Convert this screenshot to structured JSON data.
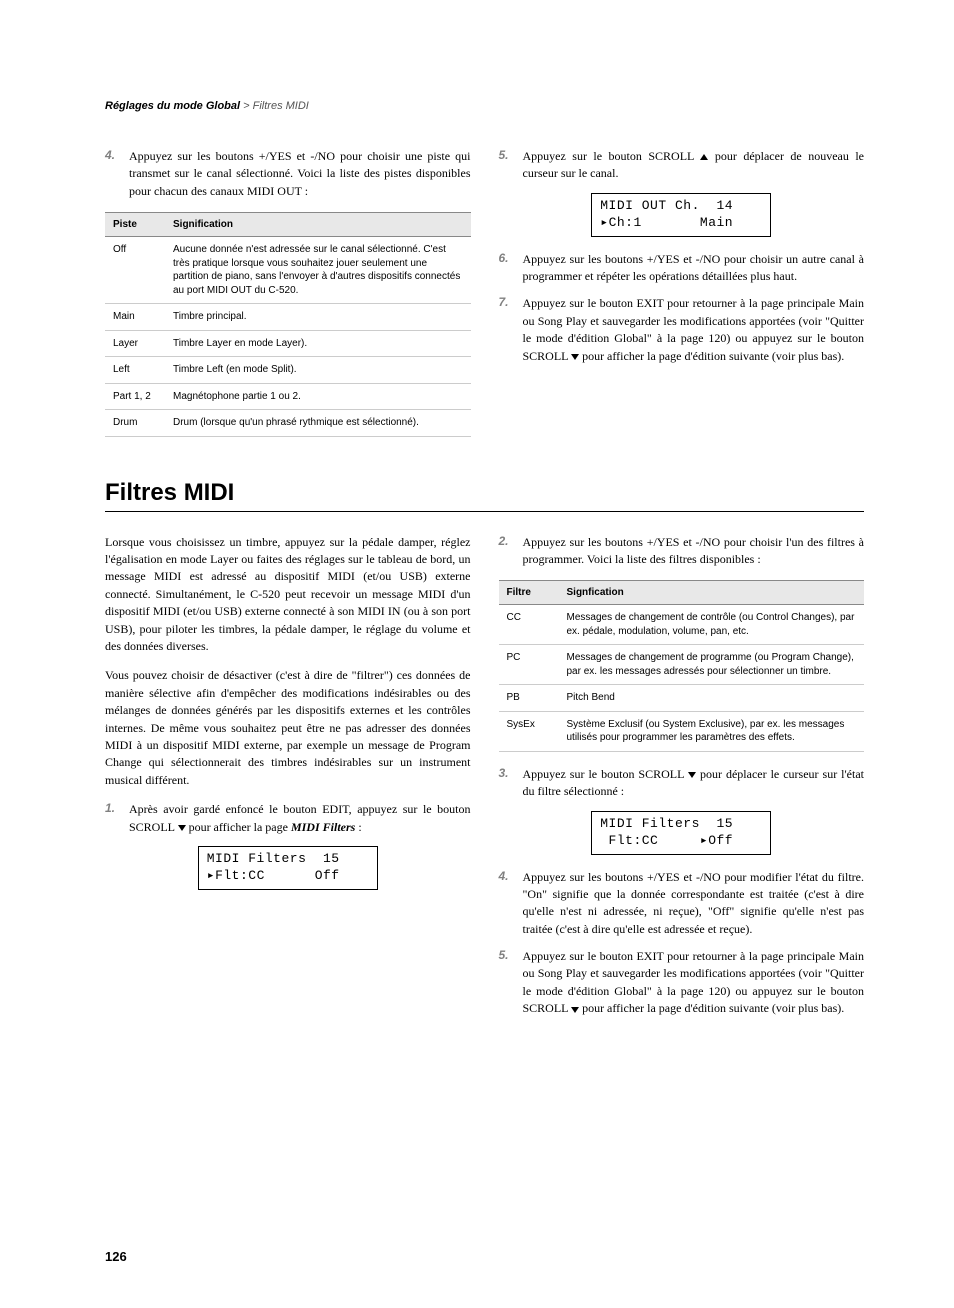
{
  "header": {
    "section": "Réglages du mode Global",
    "sep": " > ",
    "sub": "Filtres MIDI"
  },
  "top": {
    "left": {
      "step4_num": "4.",
      "step4_text": "Appuyez sur les boutons +/YES et -/NO pour choisir une piste qui transmet sur le canal sélectionné. Voici la liste des pistes disponibles pour chacun des canaux MIDI OUT :",
      "table": {
        "h1": "Piste",
        "h2": "Signification",
        "rows": [
          [
            "Off",
            "Aucune donnée n'est adressée sur le canal sélectionné. C'est très pratique lorsque vous souhaitez jouer seulement une partition de piano, sans l'envoyer à d'autres dispositifs connectés au port MIDI OUT du C-520."
          ],
          [
            "Main",
            "Timbre principal."
          ],
          [
            "Layer",
            "Timbre Layer en mode Layer)."
          ],
          [
            "Left",
            "Timbre Left (en mode Split)."
          ],
          [
            "Part 1, 2",
            "Magnétophone partie 1 ou 2."
          ],
          [
            "Drum",
            "Drum (lorsque qu'un phrasé rythmique est sélectionné)."
          ]
        ]
      }
    },
    "right": {
      "step5_num": "5.",
      "step5_text_a": "Appuyez sur le bouton SCROLL ",
      "step5_text_b": " pour déplacer de nouveau le curseur sur le canal.",
      "lcd5_l1": "MIDI OUT Ch.  14",
      "lcd5_l2": "▸Ch:1       Main",
      "step6_num": "6.",
      "step6_text": "Appuyez sur les boutons +/YES et -/NO pour choisir un autre canal à programmer et répéter les opérations détaillées plus haut.",
      "step7_num": "7.",
      "step7_text_a": "Appuyez sur le bouton EXIT pour retourner à la page principale Main ou Song Play et sauvegarder les modifications apportées (voir \"Quitter le mode d'édition Global\" à la page 120) ou appuyez sur le bouton SCROLL ",
      "step7_text_b": " pour afficher la page d'édition suivante (voir plus bas)."
    }
  },
  "section2": {
    "title": "Filtres MIDI",
    "left": {
      "p1": "Lorsque vous choisissez un timbre, appuyez sur la pédale damper, réglez l'égalisation en mode Layer ou faites des réglages sur le tableau de bord, un message MIDI est adressé au dispositif MIDI (et/ou USB) externe connecté. Simultanément, le C-520 peut recevoir un message MIDI d'un dispositif MIDI (et/ou USB) externe connecté à son MIDI IN (ou à son port USB), pour piloter les timbres, la pédale damper, le réglage du volume et des données diverses.",
      "p2": "Vous pouvez choisir de désactiver (c'est à dire de \"filtrer\") ces données de manière sélective afin d'empêcher des modifications indésirables ou des mélanges de données générés par les dispositifs externes et les contrôles internes. De même vous souhaitez peut être ne pas adresser des données MIDI à un dispositif MIDI externe, par exemple un message de Program Change qui sélectionnerait des timbres indésirables sur un instrument musical différent.",
      "step1_num": "1.",
      "step1_text_a": "Après avoir gardé enfoncé le bouton EDIT, appuyez sur le bouton SCROLL ",
      "step1_text_b": " pour afficher la page ",
      "step1_ref": "MIDI Filters",
      "step1_text_c": " :",
      "lcd1_l1": "MIDI Filters  15",
      "lcd1_l2": "▸Flt:CC      Off"
    },
    "right": {
      "step2_num": "2.",
      "step2_text": "Appuyez sur les boutons +/YES et -/NO pour choisir l'un des filtres à programmer. Voici la liste des filtres disponibles :",
      "table": {
        "h1": "Filtre",
        "h2": "Signfication",
        "rows": [
          [
            "CC",
            "Messages de changement de contrôle (ou Control Changes), par ex. pédale, modulation, volume, pan, etc."
          ],
          [
            "PC",
            "Messages de changement de programme (ou Program Change), par ex. les messages adressés pour sélectionner un timbre."
          ],
          [
            "PB",
            "Pitch Bend"
          ],
          [
            "SysEx",
            "Système Exclusif (ou System Exclusive), par ex. les messages utilisés pour programmer les paramètres des effets."
          ]
        ]
      },
      "step3_num": "3.",
      "step3_text_a": "Appuyez sur le bouton SCROLL ",
      "step3_text_b": " pour déplacer le curseur sur l'état du filtre sélectionné :",
      "lcd3_l1": "MIDI Filters  15",
      "lcd3_l2": " Flt:CC     ▸Off",
      "step4_num": "4.",
      "step4_text": "Appuyez sur les boutons +/YES et -/NO pour modifier l'état du filtre. \"On\" signifie que la donnée correspondante est traitée (c'est à dire qu'elle n'est ni adressée, ni reçue), \"Off\" signifie qu'elle n'est pas traitée (c'est à dire qu'elle est adressée et reçue).",
      "step5_num": "5.",
      "step5_text_a": "Appuyez sur le bouton EXIT pour retourner à la page principale Main ou Song Play et sauvegarder les modifications apportées (voir \"Quitter le mode d'édition Global\" à la page 120) ou appuyez sur le bouton SCROLL ",
      "step5_text_b": " pour afficher la page d'édition suivante (voir plus bas)."
    }
  },
  "page_number": "126"
}
